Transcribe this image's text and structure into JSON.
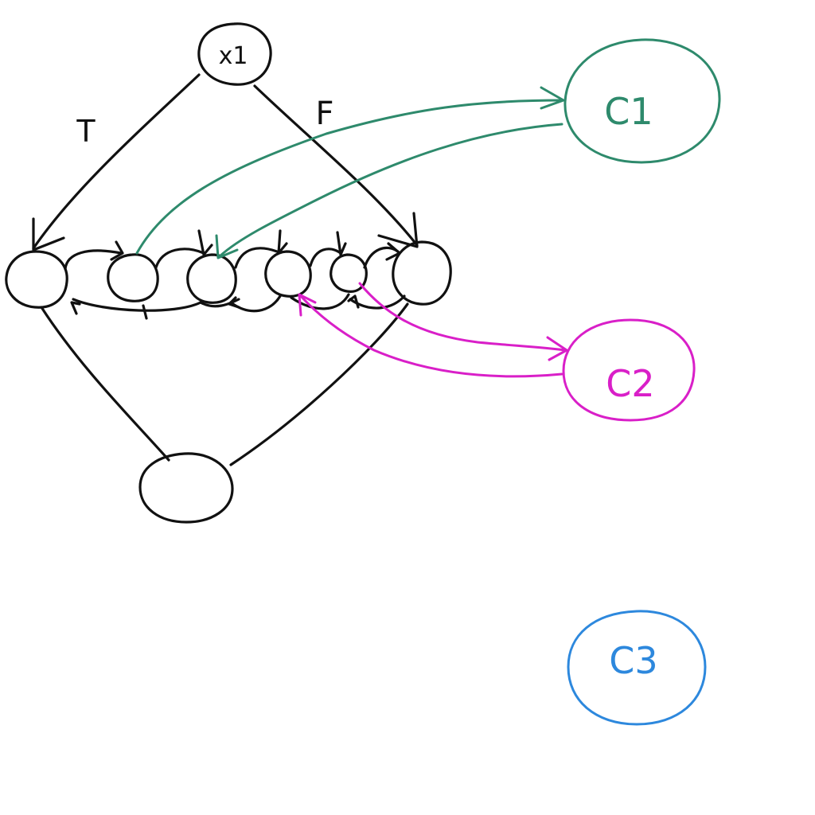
{
  "diagram": {
    "root": {
      "label": "x1"
    },
    "edges": {
      "true_label": "T",
      "false_label": "F"
    },
    "clusters": [
      {
        "label": "C1",
        "color": "#2e8a6c"
      },
      {
        "label": "C2",
        "color": "#d91fc8"
      },
      {
        "label": "C3",
        "color": "#2d88dd"
      }
    ],
    "colors": {
      "ink": "#111111"
    }
  }
}
